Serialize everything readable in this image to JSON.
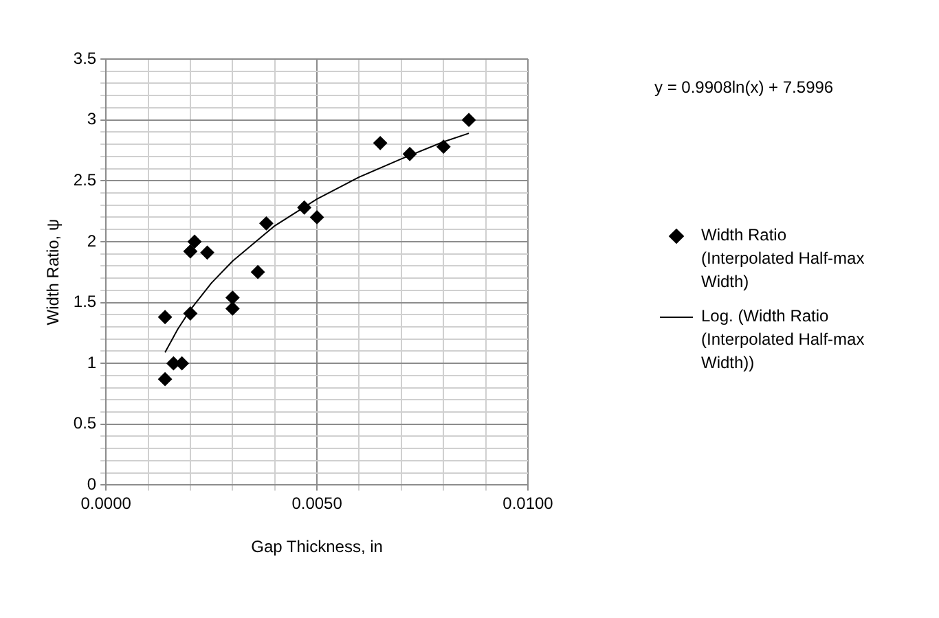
{
  "chart_data": {
    "type": "scatter",
    "xlabel": "Gap Thickness, in",
    "ylabel": "Width Ratio, ψ",
    "xlim": [
      0,
      0.01
    ],
    "ylim": [
      0,
      3.5
    ],
    "xticks": [
      {
        "value": 0,
        "label": "0.0000"
      },
      {
        "value": 0.001,
        "label": null
      },
      {
        "value": 0.002,
        "label": null
      },
      {
        "value": 0.003,
        "label": null
      },
      {
        "value": 0.004,
        "label": null
      },
      {
        "value": 0.005,
        "label": "0.0050"
      },
      {
        "value": 0.006,
        "label": null
      },
      {
        "value": 0.007,
        "label": null
      },
      {
        "value": 0.008,
        "label": null
      },
      {
        "value": 0.009,
        "label": null
      },
      {
        "value": 0.01,
        "label": "0.0100"
      }
    ],
    "yticks": [
      0,
      {
        "value": 0.1,
        "label": null
      },
      {
        "value": 0.2,
        "label": null
      },
      {
        "value": 0.3,
        "label": null
      },
      {
        "value": 0.4,
        "label": null
      },
      0.5,
      {
        "value": 0.6,
        "label": null
      },
      {
        "value": 0.7,
        "label": null
      },
      {
        "value": 0.8,
        "label": null
      },
      {
        "value": 0.9,
        "label": null
      },
      1,
      {
        "value": 1.1,
        "label": null
      },
      {
        "value": 1.2,
        "label": null
      },
      {
        "value": 1.3,
        "label": null
      },
      {
        "value": 1.4,
        "label": null
      },
      1.5,
      {
        "value": 1.6,
        "label": null
      },
      {
        "value": 1.7,
        "label": null
      },
      {
        "value": 1.8,
        "label": null
      },
      {
        "value": 1.9,
        "label": null
      },
      2,
      {
        "value": 2.1,
        "label": null
      },
      {
        "value": 2.2,
        "label": null
      },
      {
        "value": 2.3,
        "label": null
      },
      {
        "value": 2.4,
        "label": null
      },
      2.5,
      {
        "value": 2.6,
        "label": null
      },
      {
        "value": 2.7,
        "label": null
      },
      {
        "value": 2.8,
        "label": null
      },
      {
        "value": 2.9,
        "label": null
      },
      3,
      {
        "value": 3.1,
        "label": null
      },
      {
        "value": 3.2,
        "label": null
      },
      {
        "value": 3.3,
        "label": null
      },
      {
        "value": 3.4,
        "label": null
      },
      3.5
    ],
    "grid": true,
    "legend": "right",
    "annotations": [
      "y = 0.9908ln(x) + 7.5996"
    ],
    "series": [
      {
        "name": "Width Ratio (Interpolated Half-max Width)",
        "type": "scatter",
        "marker": "diamond",
        "color": "#000000",
        "x": [
          0.0014,
          0.0014,
          0.0016,
          0.0018,
          0.002,
          0.002,
          0.0021,
          0.0024,
          0.003,
          0.003,
          0.0036,
          0.0038,
          0.0047,
          0.005,
          0.0065,
          0.0072,
          0.008,
          0.0086
        ],
        "values": [
          0.87,
          1.38,
          1.0,
          1.0,
          1.41,
          1.92,
          2.0,
          1.91,
          1.54,
          1.45,
          1.75,
          2.15,
          2.28,
          2.2,
          2.81,
          2.72,
          2.78,
          3.0
        ]
      },
      {
        "name": "Log. (Width Ratio (Interpolated Half-max Width))",
        "type": "line",
        "marker": "none",
        "line_style": "solid",
        "color": "#000000",
        "x": [
          0.0014,
          0.0017,
          0.002,
          0.0025,
          0.003,
          0.004,
          0.005,
          0.006,
          0.007,
          0.008,
          0.0086
        ],
        "values": [
          1.09,
          1.28,
          1.44,
          1.66,
          1.84,
          2.13,
          2.35,
          2.53,
          2.68,
          2.82,
          2.89
        ]
      }
    ]
  }
}
